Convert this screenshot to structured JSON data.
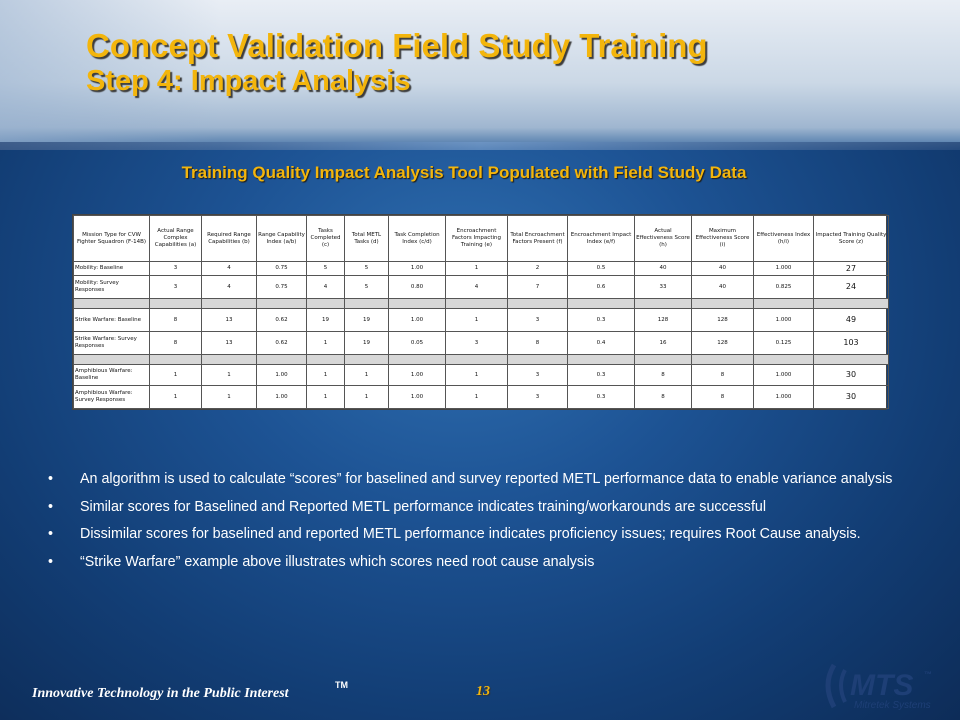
{
  "slide": {
    "title_line1": "Concept Validation Field Study Training",
    "title_line2": "Step 4: Impact Analysis",
    "subtitle": "Training Quality Impact Analysis Tool Populated with Field Study Data",
    "page_number": "13",
    "footer_tagline": "Innovative Technology in the Public Interest",
    "footer_tm": "TM",
    "logo": {
      "text": "MTS",
      "sub": "Mitretek Systems",
      "color": "#1e3f76"
    }
  },
  "table": {
    "headers": [
      "Mission Type for CVW Fighter Squadron (F-14B)",
      "Actual Range Complex Capabilities (a)",
      "Required Range Capabilities (b)",
      "Range Capability Index (a/b)",
      "Tasks Completed (c)",
      "Total METL Tasks (d)",
      "Task Completion Index (c/d)",
      "Encroachment Factors Impacting Training (e)",
      "Total Encroachment Factors Present (f)",
      "Encroachment Impact Index (e/f)",
      "Actual Effectiveness Score (h)",
      "Maximum Effectiveness Score (i)",
      "Effectiveness Index (h/i)",
      "Impacted Training Quality Score (z)"
    ],
    "rows": [
      {
        "label": "Mobility: Baseline",
        "values": [
          "3",
          "4",
          "0.75",
          "5",
          "5",
          "1.00",
          "1",
          "2",
          "0.5",
          "40",
          "40",
          "1.000",
          "27"
        ]
      },
      {
        "label": "Mobility: Survey Responses",
        "values": [
          "3",
          "4",
          "0.75",
          "4",
          "5",
          "0.80",
          "4",
          "7",
          "0.6",
          "33",
          "40",
          "0.825",
          "24"
        ]
      },
      {
        "label": "Strike Warfare: Baseline",
        "values": [
          "8",
          "13",
          "0.62",
          "19",
          "19",
          "1.00",
          "1",
          "3",
          "0.3",
          "128",
          "128",
          "1.000",
          "49"
        ]
      },
      {
        "label": "Strike Warfare: Survey Responses",
        "values": [
          "8",
          "13",
          "0.62",
          "1",
          "19",
          "0.05",
          "3",
          "8",
          "0.4",
          "16",
          "128",
          "0.125",
          "103"
        ]
      },
      {
        "label": "Amphibious Warfare: Baseline",
        "values": [
          "1",
          "1",
          "1.00",
          "1",
          "1",
          "1.00",
          "1",
          "3",
          "0.3",
          "8",
          "8",
          "1.000",
          "30"
        ]
      },
      {
        "label": "Amphibious Warfare: Survey Responses",
        "values": [
          "1",
          "1",
          "1.00",
          "1",
          "1",
          "1.00",
          "1",
          "3",
          "0.3",
          "8",
          "8",
          "1.000",
          "30"
        ]
      }
    ]
  },
  "bullets": [
    "An algorithm is used to calculate “scores” for baselined and survey reported METL performance data to enable variance analysis",
    "Similar scores for Baselined and Reported METL performance indicates training/workarounds are successful",
    "Dissimilar scores for baselined and reported METL performance indicates proficiency issues; requires Root Cause analysis.",
    "“Strike Warfare” example above illustrates which scores need root cause analysis"
  ],
  "colors": {
    "title": "#f3b50c",
    "background": "#1d5394",
    "text": "#ffffff"
  }
}
